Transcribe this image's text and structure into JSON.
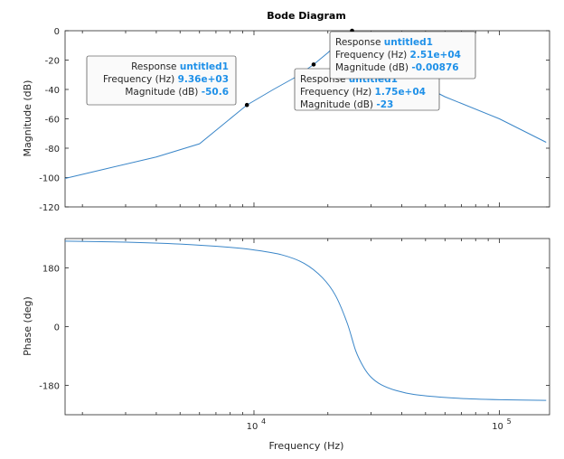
{
  "chart_data": {
    "type": "line",
    "title": "Bode Diagram",
    "xlabel": "Frequency (Hz)",
    "xscale": "log",
    "xlim": [
      1700,
      160000
    ],
    "x_ticks": [
      {
        "value": 10000,
        "base": "10",
        "exp": "4"
      },
      {
        "value": 100000,
        "base": "10",
        "exp": "5"
      }
    ],
    "series_name": "untitled1",
    "magnitude": {
      "ylabel": "Magnitude (dB)",
      "ylim": [
        -120,
        0
      ],
      "yticks": [
        0,
        -20,
        -40,
        -60,
        -80,
        -100,
        -120
      ],
      "x": [
        1700,
        2500,
        4000,
        6000,
        9360,
        12000,
        15000,
        17500,
        20000,
        22500,
        25100,
        30000,
        40000,
        60000,
        100000,
        155000
      ],
      "y": [
        -100.6,
        -94,
        -86,
        -77,
        -50.6,
        -40,
        -31,
        -23,
        -15,
        -7,
        -0.00876,
        -20,
        -30,
        -45,
        -60,
        -76
      ]
    },
    "phase": {
      "ylabel": "Phase (deg)",
      "ylim": [
        -270,
        270
      ],
      "yticks": [
        180,
        0,
        -180
      ],
      "x": [
        1700,
        3000,
        5000,
        8000,
        10000,
        13000,
        16000,
        19000,
        21500,
        24000,
        26000,
        28000,
        30000,
        33000,
        38000,
        45000,
        60000,
        80000,
        100000,
        155000
      ],
      "y": [
        262,
        259,
        253,
        243,
        235,
        220,
        194,
        150,
        95,
        10,
        -75,
        -125,
        -155,
        -178,
        -196,
        -208,
        -217,
        -222,
        -224,
        -226
      ]
    },
    "datatips": [
      {
        "series": "untitled1",
        "frequency": "9.36e+03",
        "magnitude": "-50.6",
        "x": 9360,
        "y": -50.6
      },
      {
        "series": "untitled1",
        "frequency": "1.75e+04",
        "magnitude": "-23",
        "x": 17500,
        "y": -23
      },
      {
        "series": "untitled1",
        "frequency": "2.51e+04",
        "magnitude": "-0.00876",
        "x": 25100,
        "y": -0.00876
      }
    ],
    "tip_labels": {
      "response": "Response",
      "frequency": "Frequency (Hz)",
      "magnitude": "Magnitude (dB)"
    },
    "grid": false,
    "colors": {
      "line": "#3a86c8",
      "tip_value": "#1e90e8",
      "axes": "#262626"
    }
  }
}
